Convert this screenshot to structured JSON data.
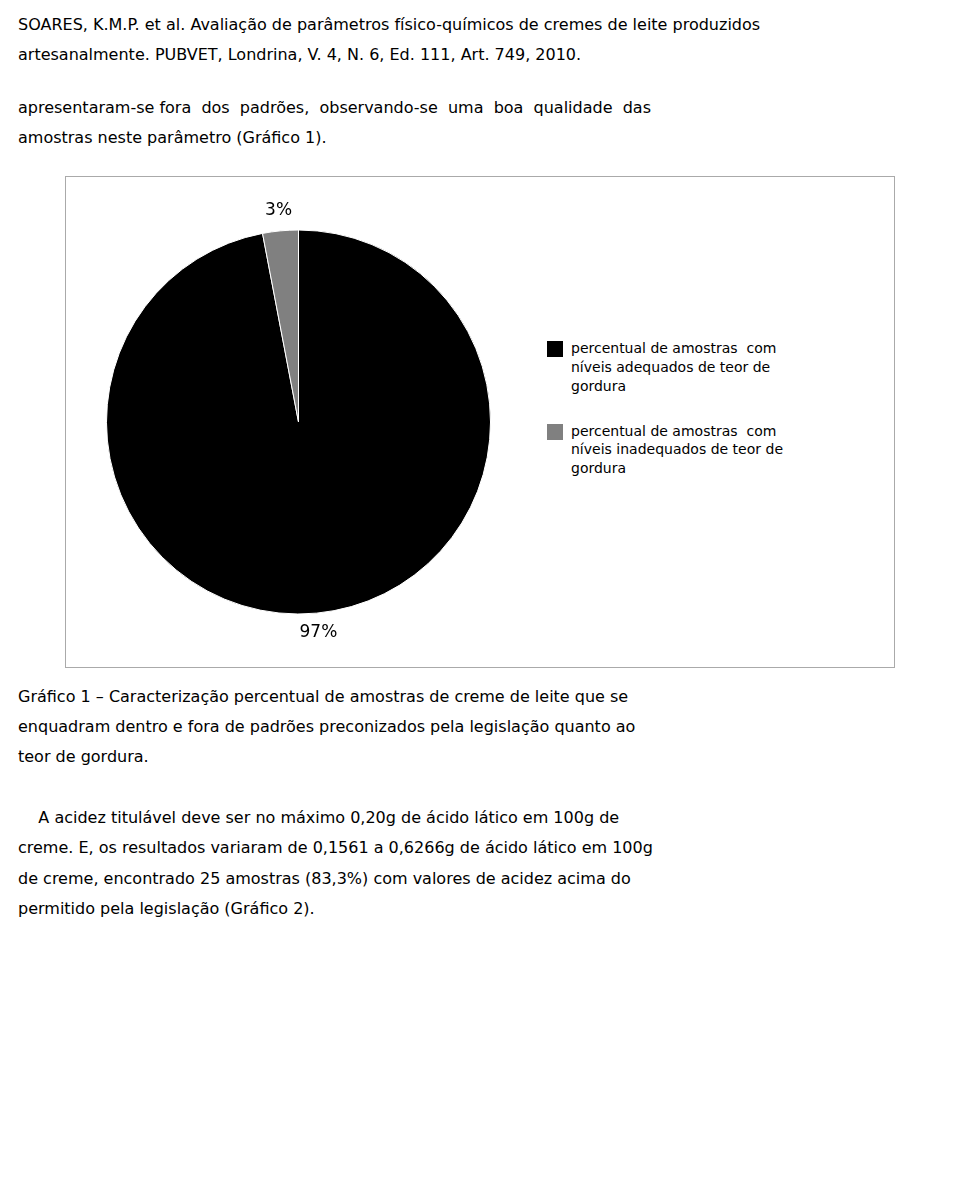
{
  "chart_data": {
    "type": "pie",
    "categories": [
      "percentual de amostras  com\nníveis adequados de teor de\ngordura",
      "percentual de amostras  com\nníveis inadequados de teor de\ngordura"
    ],
    "values": [
      97,
      3
    ],
    "value_labels": [
      "97%",
      "3%"
    ],
    "data_labels": true,
    "colors": [
      "#000000",
      "#808080"
    ],
    "legend": "right",
    "annotations": [
      "SOARES, K.M.P. et al. Avaliação de parâmetros físico-químicos de cremes de leite produzidos\nartesanalmente. PUBVET, Londrina, V. 4, N. 6, Ed. 111, Art. 749, 2010.",
      "apresentaram-se fora  dos  padrões,  observando-se  uma  boa  qualidade  das\namostras neste parâmetro (Gráfico 1).",
      "Gráfico 1 – Caracterização percentual de amostras de creme de leite que se\nenquadram dentro e fora de padrões preconizados pela legislação quanto ao\nteor de gordura.",
      "    A acidez titulável deve ser no máximo 0,20g de ácido lático em 100g de\ncreme. E, os resultados variaram de 0,1561 a 0,6266g de ácido lático em 100g\nde creme, encontrado 25 amostras (83,3%) com valores de acidez acima do\npermitido pela legislação (Gráfico 2)."
    ]
  }
}
